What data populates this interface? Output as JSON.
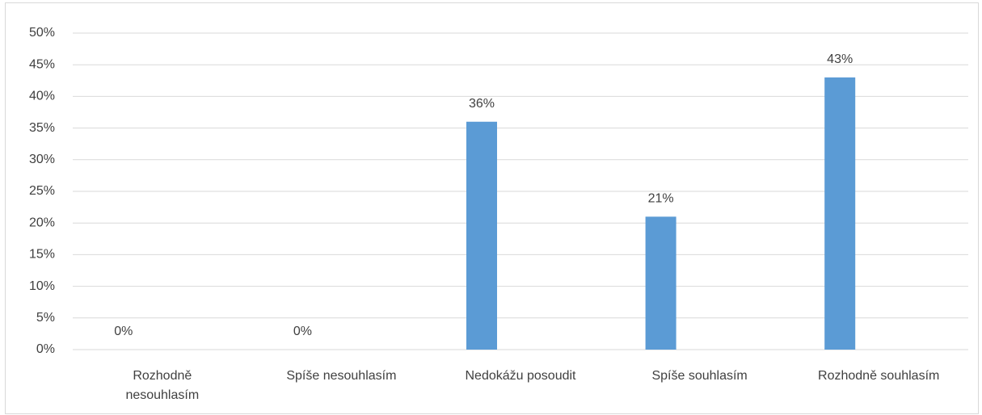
{
  "chart_data": {
    "type": "bar",
    "categories": [
      "Rozhodně nesouhlasím",
      "Spíše nesouhlasím",
      "Nedokážu posoudit",
      "Spíše souhlasím",
      "Rozhodně souhlasím"
    ],
    "values": [
      0,
      0,
      36,
      21,
      43
    ],
    "value_labels": [
      "0%",
      "0%",
      "36%",
      "21%",
      "43%"
    ],
    "color": "#5b9bd5",
    "ylim": [
      0,
      50
    ],
    "yticks": [
      {
        "value": 0,
        "label": "0%"
      },
      {
        "value": 5,
        "label": "5%"
      },
      {
        "value": 10,
        "label": "10%"
      },
      {
        "value": 15,
        "label": "15%"
      },
      {
        "value": 20,
        "label": "20%"
      },
      {
        "value": 25,
        "label": "25%"
      },
      {
        "value": 30,
        "label": "30%"
      },
      {
        "value": 35,
        "label": "35%"
      },
      {
        "value": 40,
        "label": "40%"
      },
      {
        "value": 45,
        "label": "45%"
      },
      {
        "value": 50,
        "label": "50%"
      }
    ],
    "grid": true
  }
}
